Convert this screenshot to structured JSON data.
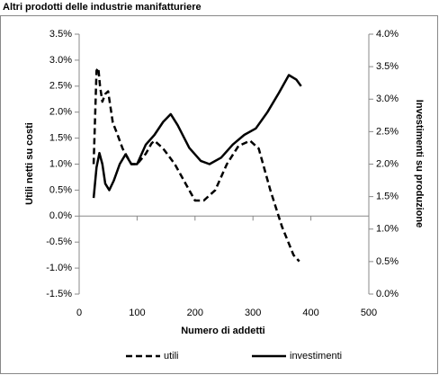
{
  "chart_data": {
    "type": "line",
    "title": "Altri prodotti delle industrie manifatturiere",
    "x_label": "Numero di addetti",
    "y_label": "Utili netti su costi",
    "y2_label": "Investimenti su produzione",
    "xlim": [
      0,
      500
    ],
    "xticks": [
      0,
      100,
      200,
      300,
      400,
      500
    ],
    "ylim": [
      -1.5,
      3.5
    ],
    "yticks": [
      {
        "value": -1.5,
        "label": "-1.5%"
      },
      {
        "value": -1.0,
        "label": "-1.0%"
      },
      {
        "value": -0.5,
        "label": "-0.5%"
      },
      {
        "value": 0.0,
        "label": "0.0%"
      },
      {
        "value": 0.5,
        "label": "0.5%"
      },
      {
        "value": 1.0,
        "label": "1.0%"
      },
      {
        "value": 1.5,
        "label": "1.5%"
      },
      {
        "value": 2.0,
        "label": "2.0%"
      },
      {
        "value": 2.5,
        "label": "2.5%"
      },
      {
        "value": 3.0,
        "label": "3.0%"
      },
      {
        "value": 3.5,
        "label": "3.5%"
      }
    ],
    "y2lim": [
      0,
      4
    ],
    "y2ticks": [
      {
        "value": 0.0,
        "label": "0.0%"
      },
      {
        "value": 0.5,
        "label": "0.5%"
      },
      {
        "value": 1.0,
        "label": "1.0%"
      },
      {
        "value": 1.5,
        "label": "1.5%"
      },
      {
        "value": 2.0,
        "label": "2.0%"
      },
      {
        "value": 2.5,
        "label": "2.5%"
      },
      {
        "value": 3.0,
        "label": "3.0%"
      },
      {
        "value": 3.5,
        "label": "3.5%"
      },
      {
        "value": 4.0,
        "label": "4.0%"
      }
    ],
    "series": [
      {
        "name": "utili",
        "color": "#000000",
        "dash": true,
        "x": [
          25,
          30,
          33,
          36,
          40,
          45,
          50,
          58,
          65,
          75,
          90,
          100,
          115,
          125,
          130,
          145,
          165,
          185,
          200,
          215,
          235,
          255,
          275,
          295,
          310,
          330,
          350,
          370,
          380
        ],
        "values": [
          1.0,
          2.8,
          2.85,
          2.5,
          2.2,
          2.35,
          2.4,
          1.8,
          1.6,
          1.3,
          1.0,
          1.0,
          1.2,
          1.4,
          1.45,
          1.3,
          1.0,
          0.6,
          0.3,
          0.3,
          0.5,
          1.0,
          1.35,
          1.45,
          1.3,
          0.5,
          -0.2,
          -0.75,
          -0.87
        ]
      },
      {
        "name": "investimenti",
        "color": "#000000",
        "dash": false,
        "axis": "y2",
        "x": [
          25,
          30,
          35,
          40,
          45,
          52,
          60,
          70,
          80,
          90,
          100,
          115,
          130,
          145,
          158,
          170,
          190,
          210,
          225,
          245,
          265,
          285,
          305,
          325,
          345,
          362,
          375,
          383
        ],
        "values": [
          1.48,
          1.95,
          2.17,
          2.0,
          1.7,
          1.6,
          1.75,
          2.0,
          2.15,
          2.0,
          2.0,
          2.3,
          2.45,
          2.65,
          2.77,
          2.6,
          2.25,
          2.05,
          2.0,
          2.1,
          2.3,
          2.45,
          2.55,
          2.8,
          3.1,
          3.37,
          3.3,
          3.2
        ]
      }
    ]
  }
}
